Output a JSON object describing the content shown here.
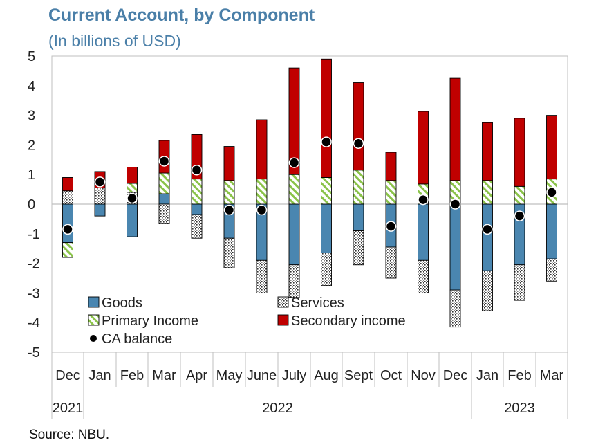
{
  "title": "Current Account, by Component",
  "subtitle": "(In billions of USD)",
  "source": "Source: NBU.",
  "colors": {
    "goods": "#4a86b0",
    "primary": "#8bc34a",
    "secondary": "#c00000",
    "services": "#555555",
    "balance": "#000000",
    "title": "#4a7fa8"
  },
  "chart_data": {
    "type": "bar",
    "stacked": true,
    "title": "Current Account, by Component",
    "ylabel": "(In billions of USD)",
    "ylim": [
      -5,
      5
    ],
    "yticks": [
      5,
      4,
      3,
      2,
      1,
      0,
      -1,
      -2,
      -3,
      -4,
      -5
    ],
    "categories": [
      "Dec",
      "Jan",
      "Feb",
      "Mar",
      "Apr",
      "May",
      "June",
      "July",
      "Aug",
      "Sept",
      "Oct",
      "Nov",
      "Dec",
      "Jan",
      "Feb",
      "Mar"
    ],
    "years": [
      {
        "label": "2021",
        "start": 0,
        "end": 0
      },
      {
        "label": "2022",
        "start": 1,
        "end": 12
      },
      {
        "label": "2023",
        "start": 13,
        "end": 15
      }
    ],
    "series": [
      {
        "name": "Goods",
        "key": "goods",
        "values": [
          -1.3,
          -0.4,
          -1.1,
          0.35,
          -0.35,
          -1.15,
          -1.9,
          -2.05,
          -1.65,
          -0.9,
          -1.45,
          -1.9,
          -2.9,
          -2.25,
          -2.05,
          -1.85
        ]
      },
      {
        "name": "Services",
        "key": "services",
        "values": [
          0.45,
          0.55,
          0.4,
          -0.65,
          -0.8,
          -1.0,
          -1.1,
          -1.1,
          -1.1,
          -1.15,
          -1.05,
          -1.1,
          -1.25,
          -1.35,
          -1.2,
          -0.75
        ]
      },
      {
        "name": "Primary Income",
        "key": "primary",
        "values": [
          -0.5,
          0.0,
          0.3,
          0.7,
          0.85,
          0.8,
          0.85,
          1.0,
          0.9,
          1.15,
          0.8,
          0.68,
          0.8,
          0.8,
          0.6,
          0.85
        ]
      },
      {
        "name": "Secondary income",
        "key": "secondary",
        "values": [
          0.45,
          0.55,
          0.55,
          1.1,
          1.5,
          1.15,
          2.0,
          3.6,
          4.0,
          2.95,
          0.95,
          2.45,
          3.45,
          1.95,
          2.3,
          2.15
        ]
      },
      {
        "name": "CA balance",
        "key": "balance",
        "type": "scatter",
        "values": [
          -0.85,
          0.75,
          0.2,
          1.45,
          1.15,
          -0.2,
          -0.2,
          1.4,
          2.1,
          2.05,
          -0.75,
          0.15,
          0.0,
          -0.85,
          -0.4,
          0.4
        ]
      }
    ],
    "legend": [
      {
        "label": "Goods",
        "key": "goods"
      },
      {
        "label": "Services",
        "key": "services"
      },
      {
        "label": "Primary Income",
        "key": "primary"
      },
      {
        "label": "Secondary income",
        "key": "secondary"
      },
      {
        "label": "CA balance",
        "key": "balance"
      }
    ],
    "legend_position": "bottom-left"
  }
}
